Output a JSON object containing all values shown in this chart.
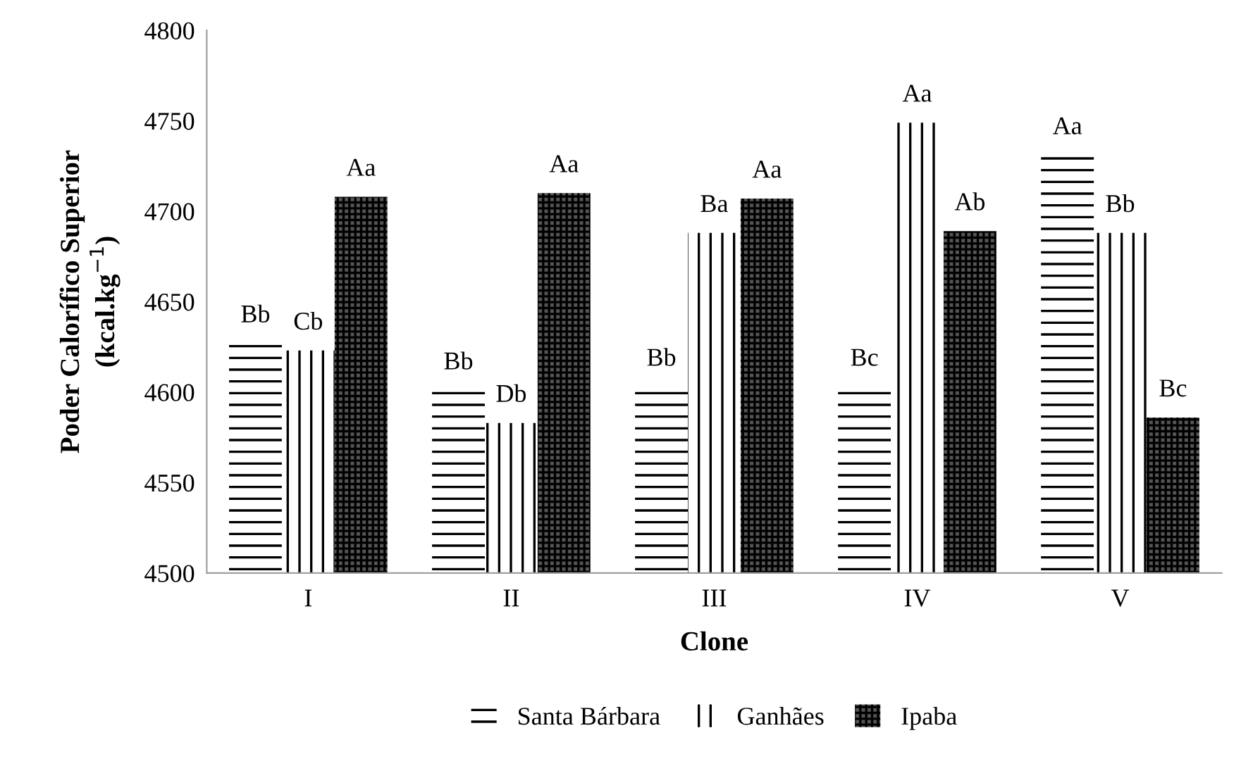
{
  "chart_data": {
    "type": "bar",
    "xlabel": "Clone",
    "ylabel": "Poder Calorífico Superior\n(kcal.kg$^{−1}$)",
    "categories": [
      "I",
      "II",
      "III",
      "IV",
      "V"
    ],
    "series": [
      {
        "name": "Santa Bárbara",
        "color": "#ffffff",
        "values": [
          4627,
          4601,
          4603,
          4603,
          4731
        ],
        "value_labels": [
          "Bb",
          "Bb",
          "Bb",
          "Bc",
          "Aa"
        ]
      },
      {
        "name": "Ganhães",
        "color": "#ffffff",
        "values": [
          4623,
          4583,
          4688,
          4749,
          4688
        ],
        "value_labels": [
          "Cb",
          "Db",
          "Ba",
          "Aa",
          "Bb"
        ]
      },
      {
        "name": "Ipaba",
        "color": "#555555",
        "values": [
          4708,
          4710,
          4707,
          4689,
          4586
        ],
        "value_labels": [
          "Aa",
          "Aa",
          "Aa",
          "Ab",
          "Bc"
        ]
      }
    ],
    "ylim": [
      4500,
      4800
    ],
    "yticks": [
      4500,
      4550,
      4600,
      4650,
      4700,
      4750,
      4800
    ],
    "grid": false,
    "legend": "bottom"
  }
}
